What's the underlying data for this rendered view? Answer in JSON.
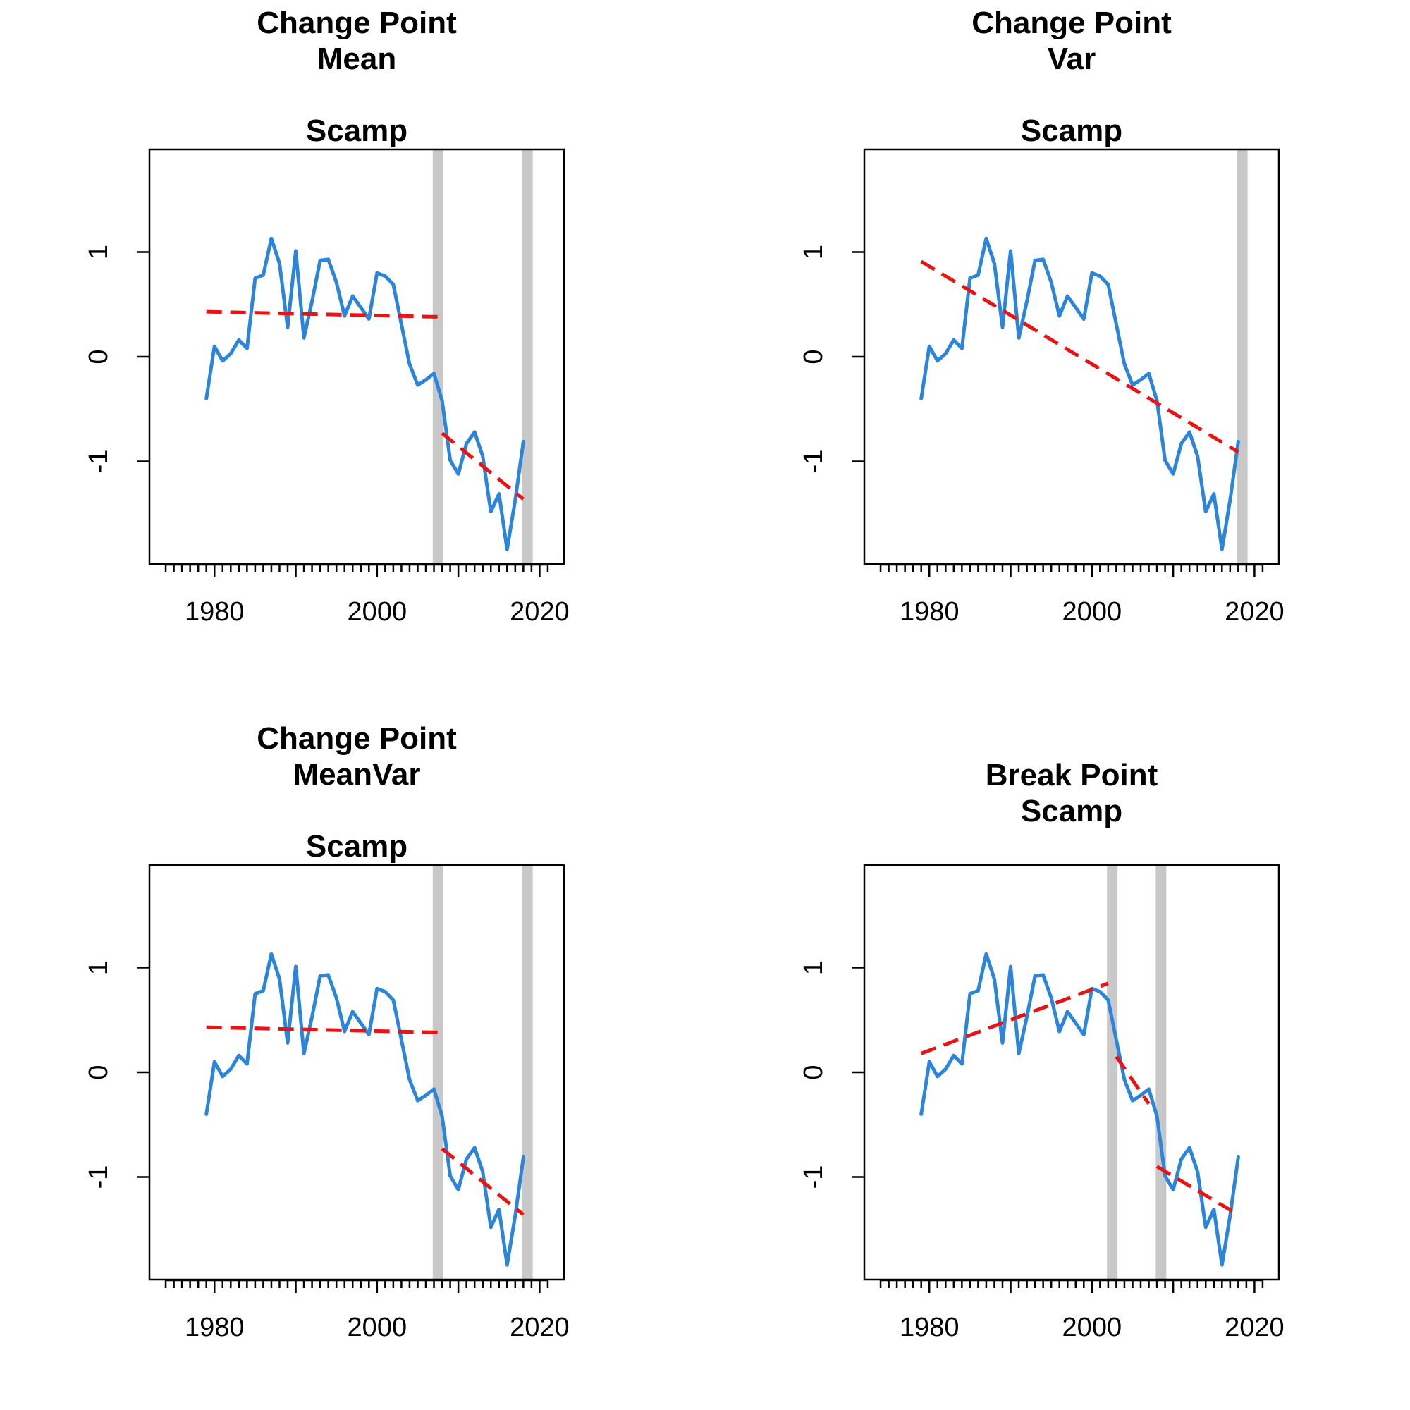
{
  "colors": {
    "series": "#2b85dc",
    "fit": "#ee1111",
    "breakpoint": "#c8c8c8",
    "axis": "#000000"
  },
  "chart_data": [
    {
      "type": "line",
      "title_lines": [
        "Change Point",
        "Mean",
        "",
        "Scamp"
      ],
      "xlim": [
        1972,
        2023
      ],
      "ylim": [
        -1.98,
        1.98
      ],
      "xticks": [
        1980,
        2000,
        2020
      ],
      "xtick_labels": [
        "1980",
        "2000",
        "2020"
      ],
      "yticks": [
        -1,
        0,
        1
      ],
      "ytick_labels": [
        "-1",
        "0",
        "1"
      ],
      "series": [
        {
          "x": [
            1979,
            1980,
            1981,
            1982,
            1983,
            1984,
            1985,
            1986,
            1987,
            1988,
            1989,
            1990,
            1991,
            1992,
            1993,
            1994,
            1995,
            1996,
            1997,
            1998,
            1999,
            2000,
            2001,
            2002,
            2003,
            2004,
            2005,
            2006,
            2007,
            2008,
            2009,
            2010,
            2011,
            2012,
            2013,
            2014,
            2015,
            2016,
            2017,
            2018
          ],
          "y": [
            -0.4,
            0.1,
            -0.04,
            0.03,
            0.16,
            0.08,
            0.75,
            0.78,
            1.13,
            0.89,
            0.28,
            1.01,
            0.18,
            0.53,
            0.92,
            0.93,
            0.71,
            0.39,
            0.58,
            0.47,
            0.36,
            0.8,
            0.77,
            0.69,
            0.31,
            -0.07,
            -0.27,
            -0.22,
            -0.16,
            -0.42,
            -0.99,
            -1.12,
            -0.83,
            -0.72,
            -0.95,
            -1.48,
            -1.31,
            -1.84,
            -1.37,
            -0.81
          ]
        }
      ],
      "fits": [
        {
          "x": [
            1979,
            2008
          ],
          "y": [
            0.43,
            0.38
          ]
        },
        {
          "x": [
            2008,
            2018
          ],
          "y": [
            -0.73,
            -1.36
          ]
        }
      ],
      "breakpoints": [
        2007.5,
        2018.5
      ]
    },
    {
      "type": "line",
      "title_lines": [
        "Change Point",
        "Var",
        "",
        "Scamp"
      ],
      "xlim": [
        1972,
        2023
      ],
      "ylim": [
        -1.98,
        1.98
      ],
      "xticks": [
        1980,
        2000,
        2020
      ],
      "xtick_labels": [
        "1980",
        "2000",
        "2020"
      ],
      "yticks": [
        -1,
        0,
        1
      ],
      "ytick_labels": [
        "-1",
        "0",
        "1"
      ],
      "series": [
        {
          "x": [
            1979,
            1980,
            1981,
            1982,
            1983,
            1984,
            1985,
            1986,
            1987,
            1988,
            1989,
            1990,
            1991,
            1992,
            1993,
            1994,
            1995,
            1996,
            1997,
            1998,
            1999,
            2000,
            2001,
            2002,
            2003,
            2004,
            2005,
            2006,
            2007,
            2008,
            2009,
            2010,
            2011,
            2012,
            2013,
            2014,
            2015,
            2016,
            2017,
            2018
          ],
          "y": [
            -0.4,
            0.1,
            -0.04,
            0.03,
            0.16,
            0.08,
            0.75,
            0.78,
            1.13,
            0.89,
            0.28,
            1.01,
            0.18,
            0.53,
            0.92,
            0.93,
            0.71,
            0.39,
            0.58,
            0.47,
            0.36,
            0.8,
            0.77,
            0.69,
            0.31,
            -0.07,
            -0.27,
            -0.22,
            -0.16,
            -0.42,
            -0.99,
            -1.12,
            -0.83,
            -0.72,
            -0.95,
            -1.48,
            -1.31,
            -1.84,
            -1.37,
            -0.81
          ]
        }
      ],
      "fits": [
        {
          "x": [
            1979,
            2018
          ],
          "y": [
            0.91,
            -0.91
          ]
        }
      ],
      "breakpoints": [
        2018.5
      ]
    },
    {
      "type": "line",
      "title_lines": [
        "Change Point",
        "MeanVar",
        "",
        "Scamp"
      ],
      "xlim": [
        1972,
        2023
      ],
      "ylim": [
        -1.98,
        1.98
      ],
      "xticks": [
        1980,
        2000,
        2020
      ],
      "xtick_labels": [
        "1980",
        "2000",
        "2020"
      ],
      "yticks": [
        -1,
        0,
        1
      ],
      "ytick_labels": [
        "-1",
        "0",
        "1"
      ],
      "series": [
        {
          "x": [
            1979,
            1980,
            1981,
            1982,
            1983,
            1984,
            1985,
            1986,
            1987,
            1988,
            1989,
            1990,
            1991,
            1992,
            1993,
            1994,
            1995,
            1996,
            1997,
            1998,
            1999,
            2000,
            2001,
            2002,
            2003,
            2004,
            2005,
            2006,
            2007,
            2008,
            2009,
            2010,
            2011,
            2012,
            2013,
            2014,
            2015,
            2016,
            2017,
            2018
          ],
          "y": [
            -0.4,
            0.1,
            -0.04,
            0.03,
            0.16,
            0.08,
            0.75,
            0.78,
            1.13,
            0.89,
            0.28,
            1.01,
            0.18,
            0.53,
            0.92,
            0.93,
            0.71,
            0.39,
            0.58,
            0.47,
            0.36,
            0.8,
            0.77,
            0.69,
            0.31,
            -0.07,
            -0.27,
            -0.22,
            -0.16,
            -0.42,
            -0.99,
            -1.12,
            -0.83,
            -0.72,
            -0.95,
            -1.48,
            -1.31,
            -1.84,
            -1.37,
            -0.81
          ]
        }
      ],
      "fits": [
        {
          "x": [
            1979,
            2008
          ],
          "y": [
            0.43,
            0.38
          ]
        },
        {
          "x": [
            2008,
            2018
          ],
          "y": [
            -0.73,
            -1.36
          ]
        }
      ],
      "breakpoints": [
        2007.5,
        2018.5
      ]
    },
    {
      "type": "line",
      "title_lines": [
        "Break Point",
        "Scamp"
      ],
      "xlim": [
        1972,
        2023
      ],
      "ylim": [
        -1.98,
        1.98
      ],
      "xticks": [
        1980,
        2000,
        2020
      ],
      "xtick_labels": [
        "1980",
        "2000",
        "2020"
      ],
      "yticks": [
        -1,
        0,
        1
      ],
      "ytick_labels": [
        "-1",
        "0",
        "1"
      ],
      "series": [
        {
          "x": [
            1979,
            1980,
            1981,
            1982,
            1983,
            1984,
            1985,
            1986,
            1987,
            1988,
            1989,
            1990,
            1991,
            1992,
            1993,
            1994,
            1995,
            1996,
            1997,
            1998,
            1999,
            2000,
            2001,
            2002,
            2003,
            2004,
            2005,
            2006,
            2007,
            2008,
            2009,
            2010,
            2011,
            2012,
            2013,
            2014,
            2015,
            2016,
            2017,
            2018
          ],
          "y": [
            -0.4,
            0.1,
            -0.04,
            0.03,
            0.16,
            0.08,
            0.75,
            0.78,
            1.13,
            0.89,
            0.28,
            1.01,
            0.18,
            0.53,
            0.92,
            0.93,
            0.71,
            0.39,
            0.58,
            0.47,
            0.36,
            0.8,
            0.77,
            0.69,
            0.31,
            -0.07,
            -0.27,
            -0.22,
            -0.16,
            -0.42,
            -0.99,
            -1.12,
            -0.83,
            -0.72,
            -0.95,
            -1.48,
            -1.31,
            -1.84,
            -1.37,
            -0.81
          ]
        }
      ],
      "fits": [
        {
          "x": [
            1979,
            2002
          ],
          "y": [
            0.18,
            0.85
          ]
        },
        {
          "x": [
            2003,
            2007
          ],
          "y": [
            0.15,
            -0.3
          ]
        },
        {
          "x": [
            2008,
            2018
          ],
          "y": [
            -0.9,
            -1.36
          ]
        }
      ],
      "breakpoints": [
        2002.5,
        2008.5
      ]
    }
  ]
}
